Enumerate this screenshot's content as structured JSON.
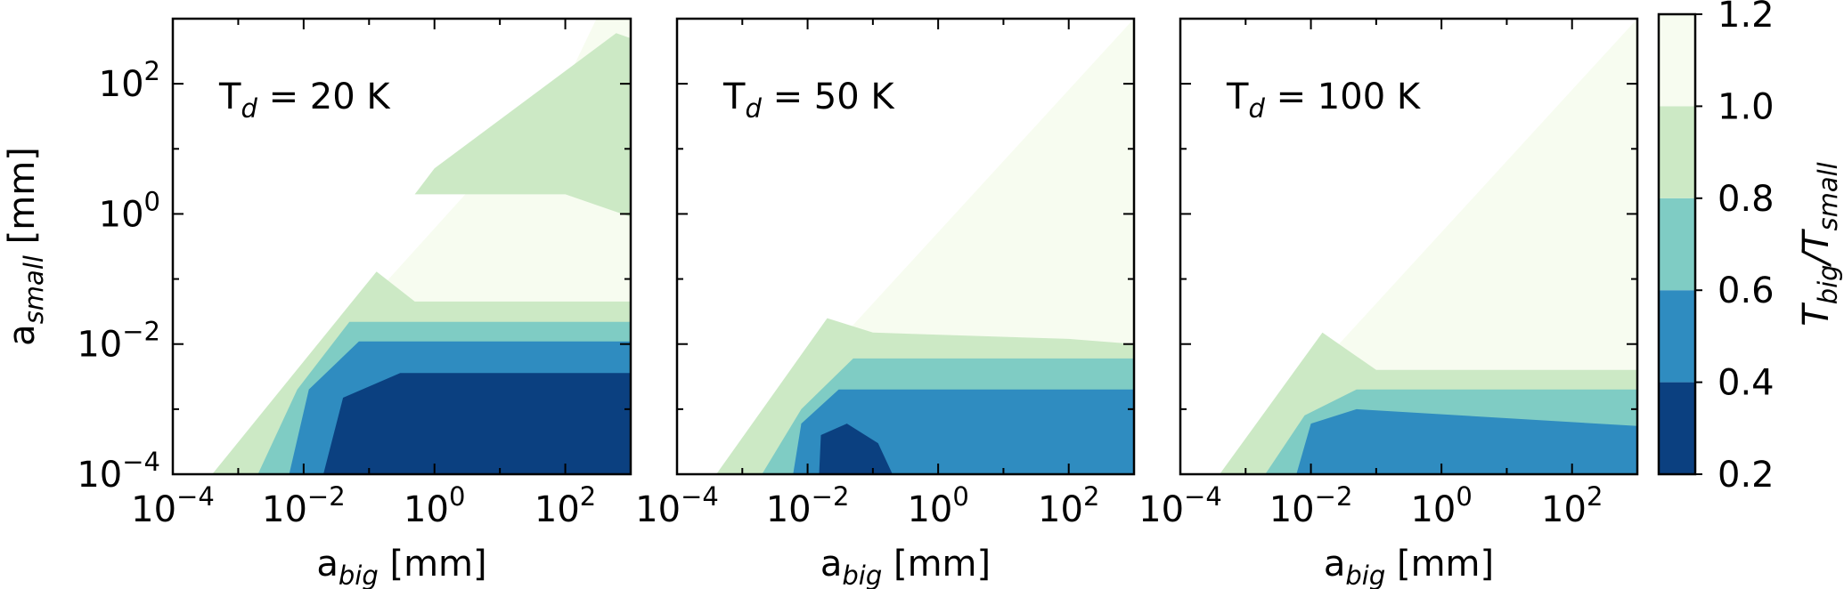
{
  "chart_data": [
    {
      "type": "heatmap",
      "panel_label": "T",
      "panel_label_sub": "d",
      "panel_label_value": " = 20 K",
      "xlabel": "a",
      "xlabel_sub": "big",
      "xlabel_unit": " [mm]",
      "ylabel": "a",
      "ylabel_sub": "small",
      "ylabel_unit": " [mm]",
      "x_scale": "log",
      "y_scale": "log",
      "xlim": [
        0.0001,
        1000
      ],
      "ylim": [
        0.0001,
        1000
      ],
      "x_ticks": [
        {
          "base": "10",
          "exp": "−4",
          "value": 0.0001
        },
        {
          "base": "10",
          "exp": "−2",
          "value": 0.01
        },
        {
          "base": "10",
          "exp": "0",
          "value": 1
        },
        {
          "base": "10",
          "exp": "2",
          "value": 100
        }
      ],
      "y_ticks": [
        {
          "base": "10",
          "exp": "−4",
          "value": 0.0001
        },
        {
          "base": "10",
          "exp": "−2",
          "value": 0.01
        },
        {
          "base": "10",
          "exp": "0",
          "value": 1
        },
        {
          "base": "10",
          "exp": "2",
          "value": 100
        }
      ],
      "contour_regions": [
        {
          "level": "1.0–1.2",
          "color": "#f7fcf0",
          "outline": [
            [
              0.0004,
              0.0001
            ],
            [
              100,
              100
            ],
            [
              300,
              1000
            ],
            [
              1000,
              1000
            ],
            [
              1000,
              0.0001
            ]
          ]
        },
        {
          "level": "0.8–1.0",
          "color": "#cce9c5",
          "outline": [
            [
              0.0004,
              0.0001
            ],
            [
              0.13,
              0.13
            ],
            [
              0.5,
              0.045
            ],
            [
              1000,
              0.045
            ],
            [
              1000,
              0.0001
            ]
          ]
        },
        {
          "level": "0.8–1.0",
          "color": "#cce9c5",
          "outline": [
            [
              0.5,
              2
            ],
            [
              100,
              2
            ],
            [
              1000,
              0.9
            ],
            [
              1000,
              500
            ],
            [
              600,
              600
            ],
            [
              1,
              5
            ]
          ]
        },
        {
          "level": "0.6–0.8",
          "color": "#7fccc4",
          "outline": [
            [
              0.002,
              0.0001
            ],
            [
              0.008,
              0.002
            ],
            [
              0.05,
              0.022
            ],
            [
              1000,
              0.022
            ],
            [
              1000,
              0.0001
            ]
          ]
        },
        {
          "level": "0.4–0.6",
          "color": "#2f8cc0",
          "outline": [
            [
              0.006,
              0.0001
            ],
            [
              0.012,
              0.002
            ],
            [
              0.07,
              0.011
            ],
            [
              1000,
              0.011
            ],
            [
              1000,
              0.0001
            ]
          ]
        },
        {
          "level": "0.2–0.4",
          "color": "#0b4080",
          "outline": [
            [
              0.02,
              0.0001
            ],
            [
              0.04,
              0.0015
            ],
            [
              0.3,
              0.0036
            ],
            [
              1000,
              0.0036
            ],
            [
              1000,
              0.0001
            ]
          ]
        }
      ]
    },
    {
      "type": "heatmap",
      "panel_label": "T",
      "panel_label_sub": "d",
      "panel_label_value": " = 50 K",
      "xlabel": "a",
      "xlabel_sub": "big",
      "xlabel_unit": " [mm]",
      "x_scale": "log",
      "y_scale": "log",
      "xlim": [
        0.0001,
        1000
      ],
      "ylim": [
        0.0001,
        1000
      ],
      "x_ticks": [
        {
          "base": "10",
          "exp": "−4",
          "value": 0.0001
        },
        {
          "base": "10",
          "exp": "−2",
          "value": 0.01
        },
        {
          "base": "10",
          "exp": "0",
          "value": 1
        },
        {
          "base": "10",
          "exp": "2",
          "value": 100
        }
      ],
      "contour_regions": [
        {
          "level": "1.0–1.2",
          "color": "#f7fcf0",
          "outline": [
            [
              0.0004,
              0.0001
            ],
            [
              1000,
              1000
            ],
            [
              1000,
              0.0001
            ]
          ]
        },
        {
          "level": "0.8–1.0",
          "color": "#cce9c5",
          "outline": [
            [
              0.0004,
              0.0001
            ],
            [
              0.02,
              0.025
            ],
            [
              0.1,
              0.015
            ],
            [
              100,
              0.012
            ],
            [
              1000,
              0.01
            ],
            [
              1000,
              0.0001
            ]
          ]
        },
        {
          "level": "0.6–0.8",
          "color": "#7fccc4",
          "outline": [
            [
              0.002,
              0.0001
            ],
            [
              0.008,
              0.001
            ],
            [
              0.05,
              0.006
            ],
            [
              1000,
              0.006
            ],
            [
              1000,
              0.0001
            ]
          ]
        },
        {
          "level": "0.4–0.6",
          "color": "#2f8cc0",
          "outline": [
            [
              0.006,
              0.0001
            ],
            [
              0.008,
              0.0006
            ],
            [
              0.03,
              0.002
            ],
            [
              0.2,
              0.002
            ],
            [
              1000,
              0.002
            ],
            [
              1000,
              0.0001
            ]
          ]
        },
        {
          "level": "0.2–0.4",
          "color": "#0b4080",
          "outline": [
            [
              0.015,
              0.0001
            ],
            [
              0.016,
              0.0004
            ],
            [
              0.04,
              0.0006
            ],
            [
              0.12,
              0.0003
            ],
            [
              0.2,
              0.0001
            ]
          ]
        }
      ]
    },
    {
      "type": "heatmap",
      "panel_label": "T",
      "panel_label_sub": "d",
      "panel_label_value": " = 100 K",
      "xlabel": "a",
      "xlabel_sub": "big",
      "xlabel_unit": " [mm]",
      "x_scale": "log",
      "y_scale": "log",
      "xlim": [
        0.0001,
        1000
      ],
      "ylim": [
        0.0001,
        1000
      ],
      "x_ticks": [
        {
          "base": "10",
          "exp": "−4",
          "value": 0.0001
        },
        {
          "base": "10",
          "exp": "−2",
          "value": 0.01
        },
        {
          "base": "10",
          "exp": "0",
          "value": 1
        },
        {
          "base": "10",
          "exp": "2",
          "value": 100
        }
      ],
      "contour_regions": [
        {
          "level": "1.0–1.2",
          "color": "#f7fcf0",
          "outline": [
            [
              0.0004,
              0.0001
            ],
            [
              1000,
              1000
            ],
            [
              1000,
              0.0001
            ]
          ]
        },
        {
          "level": "0.8–1.0",
          "color": "#cce9c5",
          "outline": [
            [
              0.0004,
              0.0001
            ],
            [
              0.015,
              0.015
            ],
            [
              0.1,
              0.004
            ],
            [
              1000,
              0.004
            ],
            [
              1000,
              0.0001
            ]
          ]
        },
        {
          "level": "0.6–0.8",
          "color": "#7fccc4",
          "outline": [
            [
              0.002,
              0.0001
            ],
            [
              0.008,
              0.0008
            ],
            [
              0.05,
              0.002
            ],
            [
              1000,
              0.002
            ],
            [
              1000,
              0.0001
            ]
          ]
        },
        {
          "level": "0.4–0.6",
          "color": "#2f8cc0",
          "outline": [
            [
              0.006,
              0.0001
            ],
            [
              0.01,
              0.0006
            ],
            [
              0.05,
              0.001
            ],
            [
              1000,
              0.00055
            ],
            [
              1000,
              0.0001
            ]
          ]
        }
      ]
    }
  ],
  "colorbar": {
    "label": "T",
    "label_sub1": "big",
    "label_mid": "/T",
    "label_sub2": "small",
    "bins": [
      {
        "from": 0.2,
        "to": 0.4,
        "color": "#0b4080"
      },
      {
        "from": 0.4,
        "to": 0.6,
        "color": "#2f8cc0"
      },
      {
        "from": 0.6,
        "to": 0.8,
        "color": "#7fccc4"
      },
      {
        "from": 0.8,
        "to": 1.0,
        "color": "#cce9c5"
      },
      {
        "from": 1.0,
        "to": 1.2,
        "color": "#f7fcf0"
      }
    ],
    "tick_labels": [
      "0.2",
      "0.4",
      "0.6",
      "0.8",
      "1.0",
      "1.2"
    ],
    "range": [
      0.2,
      1.2
    ]
  }
}
